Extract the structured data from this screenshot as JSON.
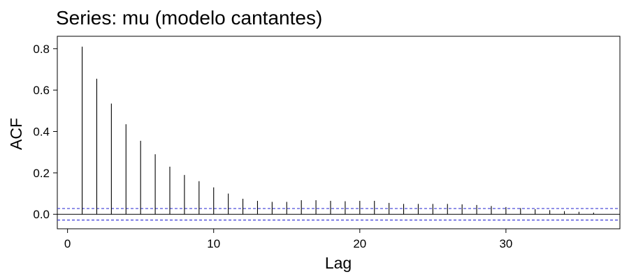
{
  "chart_data": {
    "type": "bar",
    "title": "Series: mu (modelo cantantes)",
    "xlabel": "Lag",
    "ylabel": "ACF",
    "xlim": [
      -0.7,
      37.8
    ],
    "ylim": [
      -0.07,
      0.86
    ],
    "x_ticks": [
      0,
      10,
      20,
      30
    ],
    "y_ticks": [
      0.0,
      0.2,
      0.4,
      0.6,
      0.8
    ],
    "y_tick_labels": [
      "0.0",
      "0.2",
      "0.4",
      "0.6",
      "0.8"
    ],
    "lags": [
      1,
      2,
      3,
      4,
      5,
      6,
      7,
      8,
      9,
      10,
      11,
      12,
      13,
      14,
      15,
      16,
      17,
      18,
      19,
      20,
      21,
      22,
      23,
      24,
      25,
      26,
      27,
      28,
      29,
      30,
      31,
      32,
      33,
      34,
      35,
      36
    ],
    "values": [
      0.81,
      0.655,
      0.535,
      0.435,
      0.355,
      0.29,
      0.23,
      0.19,
      0.16,
      0.13,
      0.1,
      0.075,
      0.065,
      0.06,
      0.06,
      0.068,
      0.068,
      0.065,
      0.063,
      0.065,
      0.065,
      0.055,
      0.05,
      0.05,
      0.05,
      0.05,
      0.048,
      0.045,
      0.04,
      0.035,
      0.03,
      0.025,
      0.02,
      0.015,
      0.012,
      0.008
    ],
    "confidence_band": [
      0.028,
      -0.028
    ],
    "grid": false,
    "colors": {
      "bars": "#000000",
      "confidence": "#3b3bd6",
      "axis": "#000000"
    }
  }
}
